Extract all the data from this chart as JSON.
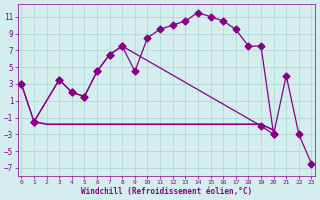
{
  "xlabel": "Windchill (Refroidissement éolien,°C)",
  "bg_color": "#d4eeed",
  "line_color": "#880088",
  "grid_color": "#aad4d0",
  "ylim": [
    -8,
    12.5
  ],
  "xlim": [
    -0.3,
    23.3
  ],
  "yticks": [
    -7,
    -5,
    -3,
    -1,
    1,
    3,
    5,
    7,
    9,
    11
  ],
  "xticks": [
    0,
    1,
    2,
    3,
    4,
    5,
    6,
    7,
    8,
    9,
    10,
    11,
    12,
    13,
    14,
    15,
    16,
    17,
    18,
    19,
    20,
    21,
    22,
    23
  ],
  "curve1_x": [
    0,
    1,
    3,
    4,
    5,
    6,
    7,
    8,
    9,
    10,
    11,
    12,
    13,
    14,
    15,
    16,
    17,
    18,
    19,
    20
  ],
  "curve1_y": [
    3,
    -1.5,
    3.5,
    2.0,
    1.5,
    4.5,
    6.5,
    7.5,
    4.5,
    8.5,
    9.5,
    10.0,
    10.5,
    11.5,
    11.0,
    10.5,
    9.5,
    7.5,
    7.5,
    -3.0
  ],
  "curve2_x": [
    0,
    1,
    3,
    4,
    5,
    6,
    7,
    8,
    19,
    20,
    21,
    22,
    23
  ],
  "curve2_y": [
    3,
    -1.5,
    3.5,
    2.0,
    1.5,
    4.5,
    6.5,
    7.5,
    -2.0,
    -3.0,
    4.0,
    -3.0,
    -6.5
  ],
  "curve3_x": [
    1,
    2,
    3,
    4,
    5,
    6,
    7,
    8,
    9,
    10,
    11,
    12,
    13,
    14,
    15,
    16,
    17,
    18,
    19,
    20
  ],
  "curve3_y": [
    -1.5,
    -1.8,
    -1.8,
    -1.8,
    -1.8,
    -1.8,
    -1.8,
    -1.8,
    -1.8,
    -1.8,
    -1.8,
    -1.8,
    -1.8,
    -1.8,
    -1.8,
    -1.8,
    -1.8,
    -1.8,
    -1.8,
    -2.5
  ]
}
